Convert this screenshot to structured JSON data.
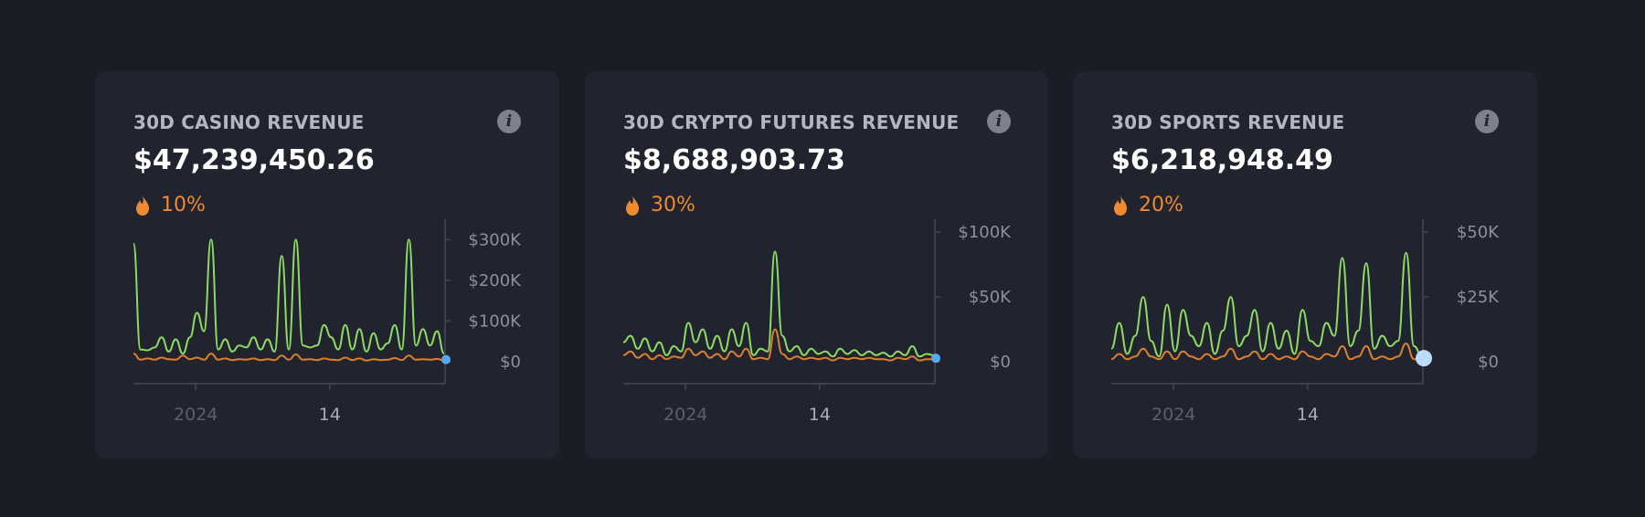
{
  "colors": {
    "background": "#1a1c26",
    "card": "#21232e",
    "primary_line": "#8ddb63",
    "secondary_line": "#d9802f",
    "highlight_dot": "#5aa9f0",
    "change_text": "#ee8a2f"
  },
  "cards": [
    {
      "title": "30D CASINO REVENUE",
      "value": "$47,239,450.26",
      "change": "10%",
      "change_icon": "flame-icon",
      "info_icon": "info-icon"
    },
    {
      "title": "30D CRYPTO FUTURES REVENUE",
      "value": "$8,688,903.73",
      "change": "30%",
      "change_icon": "flame-icon",
      "info_icon": "info-icon"
    },
    {
      "title": "30D SPORTS REVENUE",
      "value": "$6,218,948.49",
      "change": "20%",
      "change_icon": "flame-icon",
      "info_icon": "info-icon"
    }
  ],
  "chart_data": [
    {
      "type": "line",
      "x_tick_labels": [
        "2024",
        "14"
      ],
      "x_tick_positions": [
        0.2,
        0.63
      ],
      "y_tick_labels": [
        "$300K",
        "$200K",
        "$100K",
        "$0"
      ],
      "y_tick_values": [
        300000,
        200000,
        100000,
        0
      ],
      "ylim": [
        0,
        350000
      ],
      "grid": false,
      "highlight_last_point": true,
      "series": [
        {
          "values": [
            290000,
            30000,
            28000,
            35000,
            60000,
            25000,
            55000,
            20000,
            60000,
            120000,
            75000,
            300000,
            30000,
            55000,
            25000,
            40000,
            35000,
            60000,
            30000,
            55000,
            25000,
            260000,
            30000,
            300000,
            40000,
            35000,
            40000,
            90000,
            60000,
            30000,
            90000,
            30000,
            80000,
            25000,
            70000,
            30000,
            45000,
            90000,
            30000,
            300000,
            40000,
            80000,
            40000,
            75000,
            20000
          ]
        },
        {
          "values": [
            20000,
            5000,
            8000,
            5000,
            10000,
            6000,
            5000,
            15000,
            6000,
            10000,
            5000,
            20000,
            5000,
            8000,
            4000,
            6000,
            5000,
            8000,
            4000,
            6000,
            4000,
            15000,
            5000,
            18000,
            5000,
            6000,
            4000,
            8000,
            5000,
            4000,
            10000,
            4000,
            8000,
            3000,
            6000,
            4000,
            5000,
            9000,
            4000,
            15000,
            5000,
            6000,
            5000,
            7000,
            3000
          ]
        }
      ]
    },
    {
      "type": "line",
      "x_tick_labels": [
        "2024",
        "14"
      ],
      "x_tick_positions": [
        0.2,
        0.63
      ],
      "y_tick_labels": [
        "$100K",
        "$50K",
        "$0"
      ],
      "y_tick_values": [
        100000,
        50000,
        0
      ],
      "ylim": [
        0,
        110000
      ],
      "grid": false,
      "highlight_last_point": true,
      "series": [
        {
          "values": [
            15000,
            20000,
            10000,
            18000,
            8000,
            15000,
            5000,
            12000,
            8000,
            30000,
            15000,
            25000,
            10000,
            20000,
            8000,
            25000,
            12000,
            30000,
            5000,
            10000,
            8000,
            85000,
            20000,
            8000,
            12000,
            5000,
            10000,
            6000,
            8000,
            4000,
            10000,
            6000,
            9000,
            5000,
            8000,
            5000,
            7000,
            4000,
            8000,
            5000,
            12000,
            4000,
            6000,
            5000
          ]
        },
        {
          "values": [
            5000,
            8000,
            3000,
            6000,
            2000,
            5000,
            2000,
            4000,
            3000,
            10000,
            5000,
            8000,
            3000,
            6000,
            2000,
            8000,
            4000,
            10000,
            2000,
            3000,
            2000,
            25000,
            6000,
            2000,
            4000,
            2000,
            3000,
            2000,
            3000,
            1000,
            3000,
            2000,
            3000,
            2000,
            3000,
            2000,
            2000,
            1000,
            3000,
            2000,
            4000,
            1000,
            2000,
            2000
          ]
        }
      ]
    },
    {
      "type": "line",
      "x_tick_labels": [
        "2024",
        "14"
      ],
      "x_tick_positions": [
        0.2,
        0.63
      ],
      "y_tick_labels": [
        "$50K",
        "$25K",
        "$0"
      ],
      "y_tick_values": [
        50000,
        25000,
        0
      ],
      "ylim": [
        0,
        55000
      ],
      "grid": false,
      "highlight_last_point": true,
      "series": [
        {
          "values": [
            5000,
            15000,
            3000,
            10000,
            25000,
            8000,
            2000,
            22000,
            4000,
            20000,
            10000,
            6000,
            15000,
            3000,
            12000,
            25000,
            6000,
            10000,
            20000,
            4000,
            15000,
            5000,
            12000,
            3000,
            20000,
            8000,
            6000,
            15000,
            10000,
            40000,
            6000,
            12000,
            38000,
            5000,
            10000,
            6000,
            8000,
            42000,
            6000,
            2000
          ]
        },
        {
          "values": [
            1000,
            3000,
            1000,
            2000,
            5000,
            2000,
            1000,
            4000,
            1000,
            4000,
            2000,
            1000,
            3000,
            1000,
            2000,
            5000,
            1000,
            2000,
            4000,
            1000,
            3000,
            1000,
            2000,
            1000,
            4000,
            2000,
            1000,
            3000,
            2000,
            6000,
            1000,
            2000,
            6000,
            1000,
            2000,
            1000,
            2000,
            7000,
            1000,
            1000
          ]
        }
      ]
    }
  ]
}
